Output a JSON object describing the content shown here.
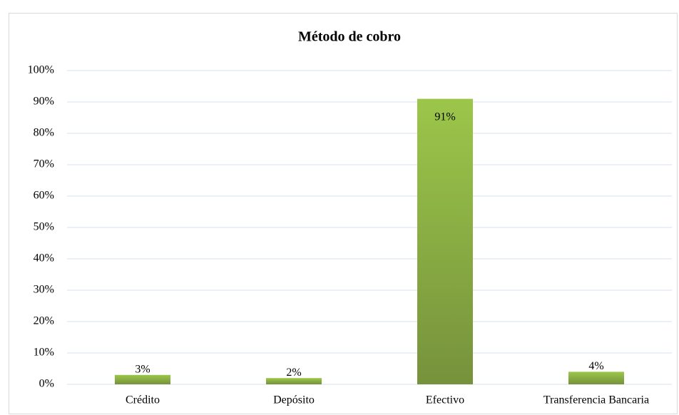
{
  "chart_data": {
    "type": "bar",
    "title": "Método de cobro",
    "categories": [
      "Crédito",
      "Depósito",
      "Efectivo",
      "Transferencia Bancaria"
    ],
    "values": [
      3,
      2,
      91,
      4
    ],
    "value_labels": [
      "3%",
      "2%",
      "91%",
      "4%"
    ],
    "color": "#8db443",
    "ylim": [
      0,
      100
    ],
    "yticks": [
      {
        "value": 0,
        "label": "0%"
      },
      {
        "value": 10,
        "label": "10%"
      },
      {
        "value": 20,
        "label": "20%"
      },
      {
        "value": 30,
        "label": "30%"
      },
      {
        "value": 40,
        "label": "40%"
      },
      {
        "value": 50,
        "label": "50%"
      },
      {
        "value": 60,
        "label": "60%"
      },
      {
        "value": 70,
        "label": "70%"
      },
      {
        "value": 80,
        "label": "80%"
      },
      {
        "value": 90,
        "label": "90%"
      },
      {
        "value": 100,
        "label": "100%"
      }
    ],
    "grid": true
  }
}
